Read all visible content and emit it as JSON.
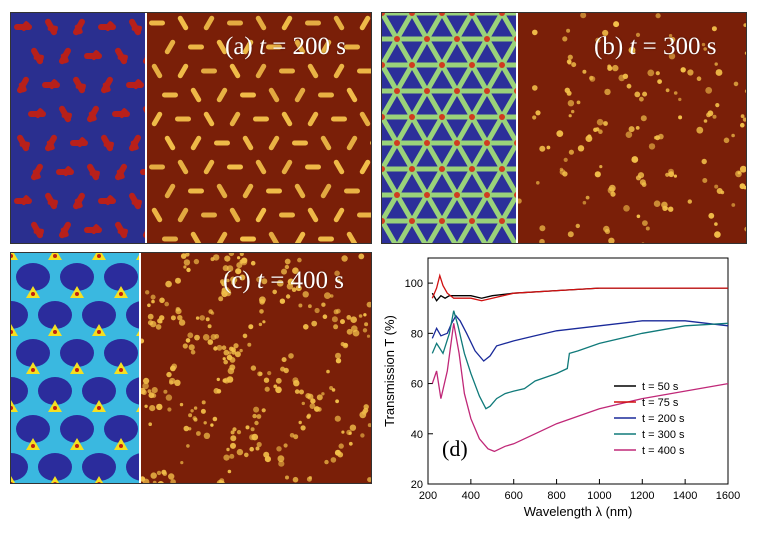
{
  "panels": [
    {
      "id": "a",
      "letter": "(a)",
      "time_var": "t",
      "time_text": " = 200 s"
    },
    {
      "id": "b",
      "letter": "(b)",
      "time_var": "t",
      "time_text": " = 300 s"
    },
    {
      "id": "c",
      "letter": "(c)",
      "time_var": "t",
      "time_text": " = 400 s"
    }
  ],
  "colors": {
    "sim_a_bg": "#2a2f8f",
    "sim_a_motif": "#b8201a",
    "sim_b_bg": "#2c2f9a",
    "sim_b_net": "#9ad27a",
    "sim_b_node": "#d03a20",
    "sim_c_bg": "#3ab8e0",
    "sim_c_blob": "#2b2c9c",
    "sim_c_node": "#f5e020",
    "afm_bg": "#7a1f08",
    "afm_dot": "#f3c04a"
  },
  "chart_data": {
    "type": "line",
    "panel_label": "(d)",
    "xlabel": "Wavelength λ (nm)",
    "ylabel": "Transmission T (%)",
    "xlim": [
      200,
      1600
    ],
    "ylim": [
      20,
      110
    ],
    "xticks": [
      200,
      400,
      600,
      800,
      1000,
      1200,
      1400,
      1600
    ],
    "yticks": [
      20,
      40,
      60,
      80,
      100
    ],
    "grid": false,
    "legend_position": "bottom-right",
    "series": [
      {
        "name": "t = 50 s",
        "color": "#000000",
        "x": [
          220,
          240,
          260,
          280,
          300,
          330,
          360,
          400,
          450,
          500,
          600,
          800,
          1000,
          1200,
          1400,
          1600
        ],
        "y": [
          96,
          93,
          95,
          94,
          95,
          95,
          95,
          95,
          94,
          95,
          96,
          97,
          98,
          98,
          98,
          98
        ]
      },
      {
        "name": "t = 75 s",
        "color": "#d01010",
        "x": [
          220,
          240,
          255,
          270,
          290,
          320,
          350,
          400,
          450,
          500,
          600,
          800,
          1000,
          1200,
          1400,
          1600
        ],
        "y": [
          94,
          98,
          103,
          99,
          96,
          94,
          94,
          94,
          93,
          94,
          96,
          97,
          98,
          98,
          98,
          98
        ]
      },
      {
        "name": "t = 200 s",
        "color": "#1a2a9a",
        "x": [
          220,
          240,
          260,
          290,
          310,
          330,
          350,
          380,
          420,
          460,
          490,
          520,
          560,
          600,
          700,
          800,
          1000,
          1200,
          1400,
          1600
        ],
        "y": [
          78,
          82,
          79,
          80,
          84,
          87,
          85,
          80,
          73,
          69,
          71,
          75,
          76,
          77,
          79,
          81,
          83,
          85,
          85,
          83
        ]
      },
      {
        "name": "t = 300 s",
        "color": "#107a7a",
        "x": [
          220,
          240,
          270,
          300,
          320,
          340,
          370,
          400,
          440,
          470,
          490,
          520,
          560,
          600,
          650,
          700,
          800,
          850,
          860,
          900,
          1000,
          1200,
          1400,
          1600
        ],
        "y": [
          72,
          76,
          72,
          80,
          89,
          83,
          72,
          64,
          55,
          50,
          51,
          54,
          56,
          57,
          58,
          61,
          64,
          66,
          72,
          73,
          76,
          80,
          83,
          84
        ]
      },
      {
        "name": "t = 400 s",
        "color": "#c02878",
        "x": [
          220,
          240,
          260,
          290,
          320,
          345,
          370,
          400,
          440,
          480,
          510,
          560,
          600,
          700,
          800,
          900,
          1000,
          1200,
          1400,
          1600
        ],
        "y": [
          60,
          65,
          54,
          65,
          84,
          72,
          56,
          46,
          38,
          34,
          33,
          35,
          36,
          40,
          44,
          47,
          50,
          54,
          57,
          60
        ]
      }
    ]
  }
}
